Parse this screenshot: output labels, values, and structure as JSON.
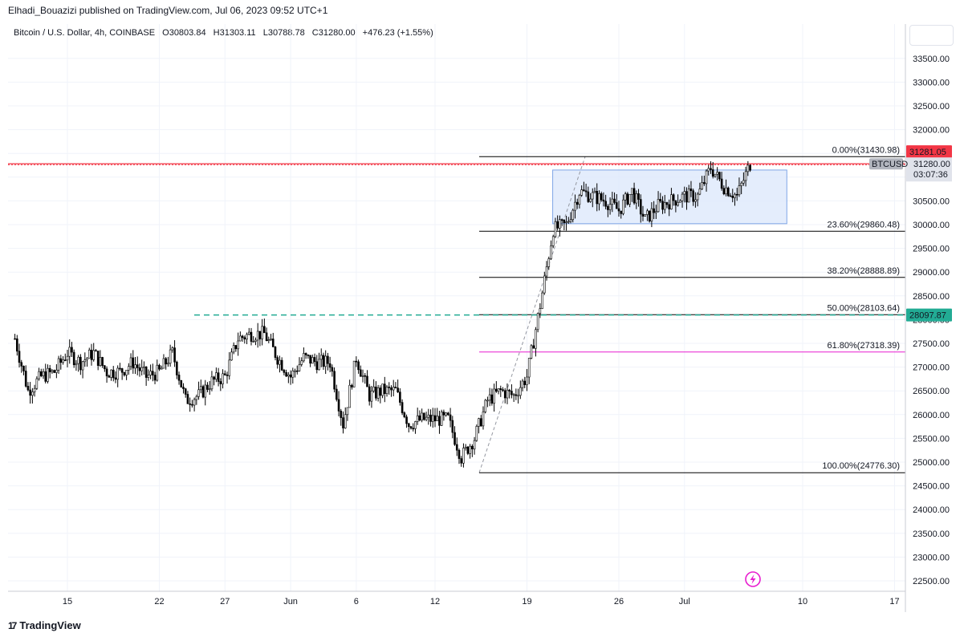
{
  "header": {
    "publisher": "Elhadi_Bouazizi published on TradingView.com, Jul 06, 2023 09:52 UTC+1",
    "symbol": "Bitcoin / U.S. Dollar, 4h, COINBASE",
    "open": "O30803.84",
    "high": "H31303.11",
    "low": "L30788.78",
    "close": "C31280.00",
    "change": "+476.23 (+1.55%)"
  },
  "footer": {
    "brand": "TradingView"
  },
  "price_labels": {
    "resistance": "31281.05",
    "symbol": "BTCUSD",
    "last_price": "31280.00",
    "countdown": "03:07:36",
    "support": "28097.87"
  },
  "colors": {
    "resistance": "#f23645",
    "support": "#22ab94",
    "fib_618": "#e81ecf",
    "rectangle_fill": "#dde9fb",
    "rectangle_border": "#7fa6e6",
    "candle": "#000000"
  },
  "chart_data": {
    "type": "candlestick",
    "y_range": [
      22300,
      33900
    ],
    "y_ticks": [
      22500,
      23000,
      23500,
      24000,
      24500,
      25000,
      25500,
      26000,
      26500,
      27000,
      27500,
      28000,
      28500,
      29000,
      29500,
      30000,
      30500,
      31000,
      31500,
      32000,
      32500,
      33000,
      33500
    ],
    "x_tick_labels": [
      "15",
      "22",
      "27",
      "Jun",
      "6",
      "12",
      "19",
      "26",
      "Jul",
      "10",
      "17"
    ],
    "grid": true,
    "close_path": [
      [
        "May 11",
        27600
      ],
      [
        "May 12",
        26500
      ],
      [
        "May 13",
        26800
      ],
      [
        "May 14",
        26900
      ],
      [
        "May 15",
        27300
      ],
      [
        "May 16",
        27100
      ],
      [
        "May 17",
        27300
      ],
      [
        "May 18",
        26900
      ],
      [
        "May 19",
        26900
      ],
      [
        "May 20",
        27100
      ],
      [
        "May 21",
        26800
      ],
      [
        "May 22",
        26900
      ],
      [
        "May 23",
        27300
      ],
      [
        "May 24",
        26300
      ],
      [
        "May 25",
        26400
      ],
      [
        "May 26",
        26700
      ],
      [
        "May 27",
        26800
      ],
      [
        "May 28",
        27600
      ],
      [
        "May 29",
        27700
      ],
      [
        "May 30",
        27700
      ],
      [
        "May 31",
        27200
      ],
      [
        "Jun 1",
        26800
      ],
      [
        "Jun 2",
        27200
      ],
      [
        "Jun 3",
        27100
      ],
      [
        "Jun 4",
        27100
      ],
      [
        "Jun 5",
        25800
      ],
      [
        "Jun 6",
        27200
      ],
      [
        "Jun 7",
        26400
      ],
      [
        "Jun 8",
        26500
      ],
      [
        "Jun 9",
        26500
      ],
      [
        "Jun 10",
        25800
      ],
      [
        "Jun 11",
        25900
      ],
      [
        "Jun 12",
        25900
      ],
      [
        "Jun 13",
        25900
      ],
      [
        "Jun 14",
        25100
      ],
      [
        "Jun 15",
        25500
      ],
      [
        "Jun 16",
        26300
      ],
      [
        "Jun 17",
        26500
      ],
      [
        "Jun 18",
        26400
      ],
      [
        "Jun 19",
        26800
      ],
      [
        "Jun 20",
        28300
      ],
      [
        "Jun 21",
        29900
      ],
      [
        "Jun 22",
        30000
      ],
      [
        "Jun 23",
        30700
      ],
      [
        "Jun 24",
        30600
      ],
      [
        "Jun 25",
        30500
      ],
      [
        "Jun 26",
        30300
      ],
      [
        "Jun 27",
        30700
      ],
      [
        "Jun 28",
        30100
      ],
      [
        "Jun 29",
        30400
      ],
      [
        "Jun 30",
        30500
      ],
      [
        "Jul 1",
        30600
      ],
      [
        "Jul 2",
        30600
      ],
      [
        "Jul 3",
        31200
      ],
      [
        "Jul 4",
        30800
      ],
      [
        "Jul 5",
        30600
      ],
      [
        "Jul 6",
        31280
      ]
    ],
    "horizontal_lines": [
      {
        "name": "resistance",
        "price": 31281.05,
        "style": "dotted"
      },
      {
        "name": "support",
        "price": 28097.87,
        "style": "dashed"
      }
    ],
    "fib_levels": [
      {
        "label": "0.00%(31430.98)",
        "price": 31430.98
      },
      {
        "label": "23.60%(29860.48)",
        "price": 29860.48
      },
      {
        "label": "38.20%(28888.89)",
        "price": 28888.89
      },
      {
        "label": "50.00%(28103.64)",
        "price": 28103.64
      },
      {
        "label": "61.80%(27318.39)",
        "price": 27318.39
      },
      {
        "label": "100.00%(24776.30)",
        "price": 24776.3
      }
    ],
    "range_box": {
      "from": "Jun 22",
      "to": "Jul 8",
      "top": 31150,
      "bottom": 30020
    }
  }
}
